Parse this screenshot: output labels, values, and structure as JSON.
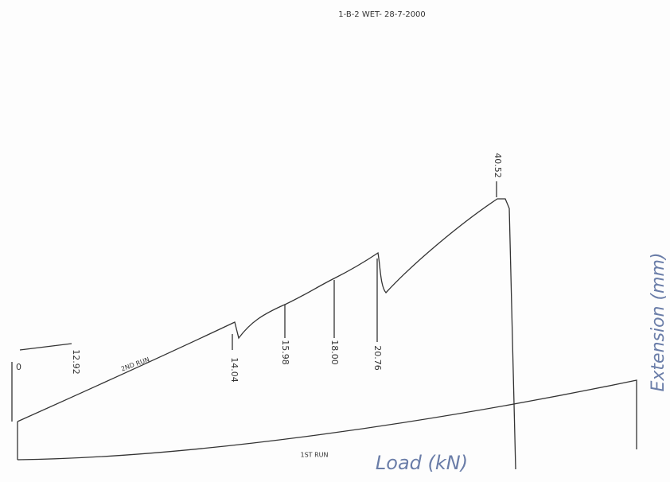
{
  "header": {
    "title": "1-B-2   WET- 28-7-2000"
  },
  "annotations": {
    "origin": "0",
    "start": "12.92",
    "run_2": "2ND RUN",
    "peak_1": "14.04",
    "peak_2": "15.98",
    "peak_3": "18.00",
    "peak_4": "20.76",
    "peak_max": "40.52",
    "run_1": "1ST RUN"
  },
  "axes": {
    "x_label": "Load (kN)",
    "y_label": "Extension (mm)"
  }
}
